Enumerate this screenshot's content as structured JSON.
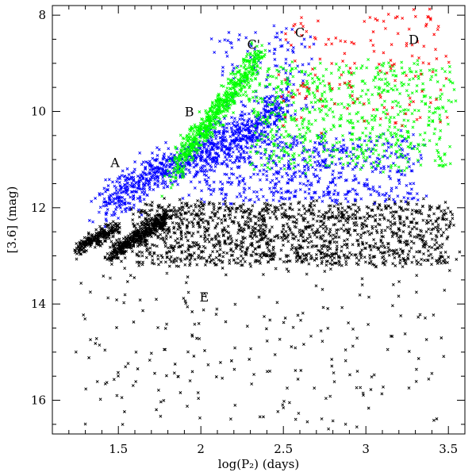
{
  "chart_data": {
    "type": "scatter",
    "xlabel": "log(P₂) (days)",
    "ylabel": "[3.6] (mag)",
    "xlim": [
      1.1,
      3.6
    ],
    "ylim": [
      16.7,
      7.8
    ],
    "y_inverted": true,
    "xticks": [
      1.5,
      2,
      2.5,
      3,
      3.5
    ],
    "xtick_labels": [
      "1.5",
      "2",
      "2.5",
      "3",
      "3.5"
    ],
    "yticks": [
      8,
      10,
      12,
      14,
      16
    ],
    "ytick_labels": [
      "8",
      "10",
      "12",
      "14",
      "16"
    ],
    "grid": false,
    "marker": "cross",
    "series_colors": [
      "#000000",
      "#0000ff",
      "#00ff00",
      "#ff0000"
    ],
    "series": [
      {
        "color": "#000000",
        "clusters": [
          {
            "x": [
              1.25,
              1.5
            ],
            "y": [
              12.4,
              12.85
            ],
            "slope": -3.2,
            "scatter": [
              0.04,
              0.12
            ],
            "n": 250
          },
          {
            "x": [
              1.45,
              1.8
            ],
            "y": [
              12.2,
              13.0
            ],
            "slope": -3.8,
            "scatter": [
              0.06,
              0.13
            ],
            "n": 450
          },
          {
            "x": [
              1.6,
              3.5
            ],
            "y": [
              11.9,
              13.2
            ],
            "slope": 0,
            "scatter": [
              0.1,
              0.3
            ],
            "n": 1500
          },
          {
            "x": [
              1.3,
              3.5
            ],
            "y": [
              13.2,
              16.5
            ],
            "slope": 0,
            "scatter": [
              0.1,
              0.8
            ],
            "n": 230
          }
        ]
      },
      {
        "color": "#0000ff",
        "clusters": [
          {
            "x": [
              1.4,
              2.5
            ],
            "y": [
              10.0,
              11.9
            ],
            "slope": -3.0,
            "scatter": [
              0.12,
              0.3
            ],
            "n": 900
          },
          {
            "x": [
              2.0,
              3.3
            ],
            "y": [
              10.5,
              11.9
            ],
            "slope": 0,
            "scatter": [
              0.12,
              0.35
            ],
            "n": 650
          },
          {
            "x": [
              2.1,
              2.65
            ],
            "y": [
              8.3,
              10.0
            ],
            "slope": 0,
            "scatter": [
              0.08,
              0.45
            ],
            "n": 140
          }
        ]
      },
      {
        "color": "#00ff00",
        "clusters": [
          {
            "x": [
              1.85,
              2.35
            ],
            "y": [
              8.9,
              11.1
            ],
            "slope": -3.5,
            "scatter": [
              0.1,
              0.25
            ],
            "n": 650
          },
          {
            "x": [
              2.3,
              3.5
            ],
            "y": [
              9.0,
              11.2
            ],
            "slope": 0,
            "scatter": [
              0.1,
              0.5
            ],
            "n": 700
          }
        ]
      },
      {
        "color": "#ff0000",
        "clusters": [
          {
            "x": [
              2.5,
              3.5
            ],
            "y": [
              8.0,
              10.3
            ],
            "slope": 0,
            "scatter": [
              0.05,
              0.5
            ],
            "n": 150
          }
        ]
      }
    ],
    "annotations": [
      {
        "text": "A",
        "x": 1.48,
        "y": 11.15
      },
      {
        "text": "B",
        "x": 1.93,
        "y": 10.1
      },
      {
        "text": "C'",
        "x": 2.32,
        "y": 8.7
      },
      {
        "text": "C",
        "x": 2.6,
        "y": 8.45
      },
      {
        "text": "D",
        "x": 3.29,
        "y": 8.6
      },
      {
        "text": "E",
        "x": 2.02,
        "y": 13.95
      }
    ]
  }
}
